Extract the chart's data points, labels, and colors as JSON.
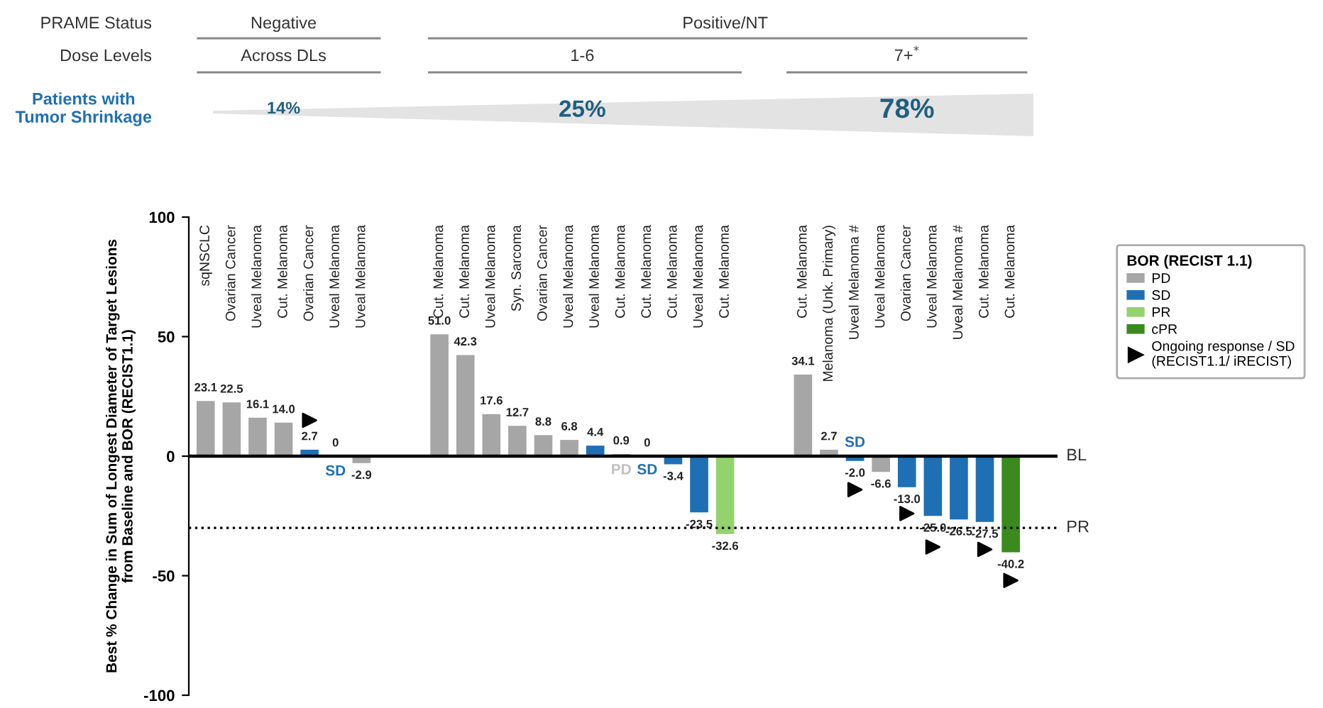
{
  "chart_data": {
    "type": "bar",
    "stacked": true,
    "ylabel": "Best % Change in Sum of Longest Diameter of Target Lesions\nfrom Baseline and BOR (RECIST1.1)",
    "legend_title": "BOR (RECIST 1.1)",
    "categories": [
      "sqNSCLC",
      "Ovarian Cancer",
      "Uveal Melanoma",
      "Cut. Melanoma",
      "Ovarian Cancer",
      "Uveal Melanoma",
      "Uveal Melanoma",
      null,
      null,
      "Cut. Melanoma",
      "Cut. Melanoma",
      "Uveal Melanoma",
      "Syn. Sarcoma",
      "Ovarian Cancer",
      "Uveal Melanoma",
      "Uveal Melanoma",
      "Cut. Melanoma",
      "Cut. Melanoma",
      "Cut. Melanoma",
      "Uveal Melanoma",
      "Cut. Melanoma",
      null,
      null,
      "Cut. Melanoma",
      "Melanoma (Unk. Primary)",
      "Uveal Melanoma #",
      "Uveal Melanoma",
      "Ovarian Cancer",
      "Uveal Melanoma",
      "Uveal Melanoma #",
      "Cut. Melanoma",
      "Cut. Melanoma"
    ],
    "series": [
      {
        "name": "PD",
        "color": "#a6a6a6",
        "values": [
          23.1,
          22.5,
          16.1,
          14.0,
          null,
          null,
          -2.9,
          null,
          null,
          51.0,
          42.3,
          17.6,
          12.7,
          8.8,
          6.8,
          null,
          0.9,
          null,
          null,
          null,
          null,
          null,
          null,
          34.1,
          2.7,
          null,
          -6.6,
          null,
          null,
          null,
          null,
          null
        ],
        "value_labels": [
          "23.1",
          "22.5",
          "16.1",
          "14.0",
          null,
          null,
          "-2.9",
          null,
          null,
          "51.0",
          "42.3",
          "17.6",
          "12.7",
          "8.8",
          "6.8",
          null,
          "0.9",
          null,
          null,
          null,
          null,
          null,
          null,
          "34.1",
          "2.7",
          null,
          "-6.6",
          null,
          null,
          null,
          null,
          null
        ]
      },
      {
        "name": "SD",
        "color": "#1f6fb5",
        "values": [
          null,
          null,
          null,
          null,
          2.7,
          0,
          null,
          null,
          null,
          null,
          null,
          null,
          null,
          null,
          null,
          4.4,
          null,
          0,
          -3.4,
          -23.5,
          null,
          null,
          null,
          null,
          null,
          -2.0,
          null,
          -13.0,
          -25.0,
          -26.5,
          -27.5,
          null
        ],
        "value_labels": [
          null,
          null,
          null,
          null,
          "2.7",
          "0",
          null,
          null,
          null,
          null,
          null,
          null,
          null,
          null,
          null,
          "4.4",
          null,
          "0",
          "-3.4",
          "-23.5",
          null,
          null,
          null,
          null,
          null,
          "-2.0",
          null,
          "-13.0",
          "-25.0",
          "-26.5",
          "-27.5",
          null
        ]
      },
      {
        "name": "PR",
        "color": "#92d36e",
        "values": [
          null,
          null,
          null,
          null,
          null,
          null,
          null,
          null,
          null,
          null,
          null,
          null,
          null,
          null,
          null,
          null,
          null,
          null,
          null,
          null,
          -32.6,
          null,
          null,
          null,
          null,
          null,
          null,
          null,
          null,
          null,
          null,
          null
        ],
        "value_labels": [
          null,
          null,
          null,
          null,
          null,
          null,
          null,
          null,
          null,
          null,
          null,
          null,
          null,
          null,
          null,
          null,
          null,
          null,
          null,
          null,
          "-32.6",
          null,
          null,
          null,
          null,
          null,
          null,
          null,
          null,
          null,
          null,
          null
        ]
      },
      {
        "name": "cPR",
        "color": "#3a8a1e",
        "values": [
          null,
          null,
          null,
          null,
          null,
          null,
          null,
          null,
          null,
          null,
          null,
          null,
          null,
          null,
          null,
          null,
          null,
          null,
          null,
          null,
          null,
          null,
          null,
          null,
          null,
          null,
          null,
          null,
          null,
          null,
          null,
          -40.2
        ],
        "value_labels": [
          null,
          null,
          null,
          null,
          null,
          null,
          null,
          null,
          null,
          null,
          null,
          null,
          null,
          null,
          null,
          null,
          null,
          null,
          null,
          null,
          null,
          null,
          null,
          null,
          null,
          null,
          null,
          null,
          null,
          null,
          null,
          "-40.2"
        ]
      },
      {
        "name": "Ongoing response / SD\n(RECIST1.1/ iRECIST)",
        "type": "scatter",
        "color": "#000000",
        "values": [
          null,
          null,
          null,
          null,
          15,
          null,
          null,
          null,
          null,
          null,
          null,
          null,
          null,
          null,
          null,
          null,
          null,
          null,
          null,
          null,
          null,
          null,
          null,
          null,
          null,
          -14,
          null,
          -24,
          -38,
          null,
          -39,
          -52
        ]
      }
    ],
    "marker": "triangle",
    "ylim": [
      -100,
      100
    ],
    "yticks": [
      -100,
      -50,
      0,
      50,
      100
    ],
    "ref_lines": [
      {
        "axis": "y",
        "value": 0,
        "label": "BL",
        "color": "#000000",
        "line_style": "solid"
      },
      {
        "axis": "y",
        "value": -30,
        "label": "PR",
        "color": "#000000",
        "line_style": "dotted"
      }
    ],
    "annotations": [
      "PRAME Status",
      "Negative",
      "Positive/NT",
      "Dose Levels",
      "Across DLs",
      "1-6",
      "7+$^{*}$",
      "Patients with\nTumor Shrinkage",
      "14%",
      "25%",
      "78%",
      "SD",
      "PD",
      "SD",
      "SD"
    ],
    "grid": false,
    "legend": "right"
  }
}
